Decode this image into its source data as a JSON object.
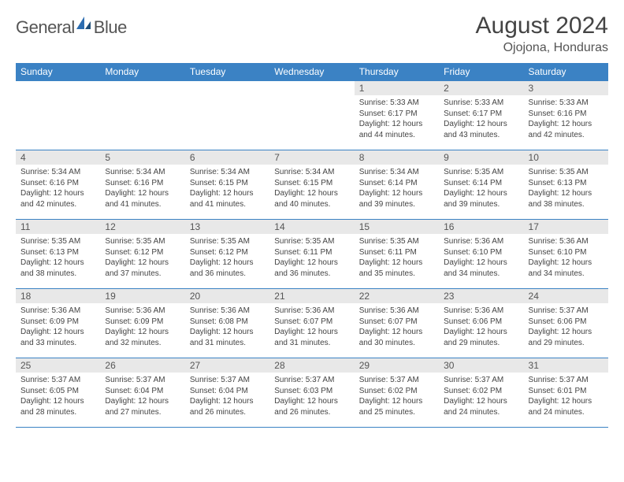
{
  "logo": {
    "word1": "General",
    "word2": "Blue"
  },
  "title": "August 2024",
  "location": "Ojojona, Honduras",
  "colors": {
    "header_bg": "#3b82c4",
    "header_text": "#ffffff",
    "daynum_bg": "#e8e8e8",
    "text": "#444444",
    "rule": "#3b82c4",
    "logo_blue": "#2b6cb0"
  },
  "typography": {
    "title_fontsize": 30,
    "location_fontsize": 16,
    "dayheader_fontsize": 12,
    "body_fontsize": 10
  },
  "day_headers": [
    "Sunday",
    "Monday",
    "Tuesday",
    "Wednesday",
    "Thursday",
    "Friday",
    "Saturday"
  ],
  "weeks": [
    [
      {
        "empty": true
      },
      {
        "empty": true
      },
      {
        "empty": true
      },
      {
        "empty": true
      },
      {
        "day": "1",
        "sunrise": "Sunrise: 5:33 AM",
        "sunset": "Sunset: 6:17 PM",
        "daylight": "Daylight: 12 hours and 44 minutes."
      },
      {
        "day": "2",
        "sunrise": "Sunrise: 5:33 AM",
        "sunset": "Sunset: 6:17 PM",
        "daylight": "Daylight: 12 hours and 43 minutes."
      },
      {
        "day": "3",
        "sunrise": "Sunrise: 5:33 AM",
        "sunset": "Sunset: 6:16 PM",
        "daylight": "Daylight: 12 hours and 42 minutes."
      }
    ],
    [
      {
        "day": "4",
        "sunrise": "Sunrise: 5:34 AM",
        "sunset": "Sunset: 6:16 PM",
        "daylight": "Daylight: 12 hours and 42 minutes."
      },
      {
        "day": "5",
        "sunrise": "Sunrise: 5:34 AM",
        "sunset": "Sunset: 6:16 PM",
        "daylight": "Daylight: 12 hours and 41 minutes."
      },
      {
        "day": "6",
        "sunrise": "Sunrise: 5:34 AM",
        "sunset": "Sunset: 6:15 PM",
        "daylight": "Daylight: 12 hours and 41 minutes."
      },
      {
        "day": "7",
        "sunrise": "Sunrise: 5:34 AM",
        "sunset": "Sunset: 6:15 PM",
        "daylight": "Daylight: 12 hours and 40 minutes."
      },
      {
        "day": "8",
        "sunrise": "Sunrise: 5:34 AM",
        "sunset": "Sunset: 6:14 PM",
        "daylight": "Daylight: 12 hours and 39 minutes."
      },
      {
        "day": "9",
        "sunrise": "Sunrise: 5:35 AM",
        "sunset": "Sunset: 6:14 PM",
        "daylight": "Daylight: 12 hours and 39 minutes."
      },
      {
        "day": "10",
        "sunrise": "Sunrise: 5:35 AM",
        "sunset": "Sunset: 6:13 PM",
        "daylight": "Daylight: 12 hours and 38 minutes."
      }
    ],
    [
      {
        "day": "11",
        "sunrise": "Sunrise: 5:35 AM",
        "sunset": "Sunset: 6:13 PM",
        "daylight": "Daylight: 12 hours and 38 minutes."
      },
      {
        "day": "12",
        "sunrise": "Sunrise: 5:35 AM",
        "sunset": "Sunset: 6:12 PM",
        "daylight": "Daylight: 12 hours and 37 minutes."
      },
      {
        "day": "13",
        "sunrise": "Sunrise: 5:35 AM",
        "sunset": "Sunset: 6:12 PM",
        "daylight": "Daylight: 12 hours and 36 minutes."
      },
      {
        "day": "14",
        "sunrise": "Sunrise: 5:35 AM",
        "sunset": "Sunset: 6:11 PM",
        "daylight": "Daylight: 12 hours and 36 minutes."
      },
      {
        "day": "15",
        "sunrise": "Sunrise: 5:35 AM",
        "sunset": "Sunset: 6:11 PM",
        "daylight": "Daylight: 12 hours and 35 minutes."
      },
      {
        "day": "16",
        "sunrise": "Sunrise: 5:36 AM",
        "sunset": "Sunset: 6:10 PM",
        "daylight": "Daylight: 12 hours and 34 minutes."
      },
      {
        "day": "17",
        "sunrise": "Sunrise: 5:36 AM",
        "sunset": "Sunset: 6:10 PM",
        "daylight": "Daylight: 12 hours and 34 minutes."
      }
    ],
    [
      {
        "day": "18",
        "sunrise": "Sunrise: 5:36 AM",
        "sunset": "Sunset: 6:09 PM",
        "daylight": "Daylight: 12 hours and 33 minutes."
      },
      {
        "day": "19",
        "sunrise": "Sunrise: 5:36 AM",
        "sunset": "Sunset: 6:09 PM",
        "daylight": "Daylight: 12 hours and 32 minutes."
      },
      {
        "day": "20",
        "sunrise": "Sunrise: 5:36 AM",
        "sunset": "Sunset: 6:08 PM",
        "daylight": "Daylight: 12 hours and 31 minutes."
      },
      {
        "day": "21",
        "sunrise": "Sunrise: 5:36 AM",
        "sunset": "Sunset: 6:07 PM",
        "daylight": "Daylight: 12 hours and 31 minutes."
      },
      {
        "day": "22",
        "sunrise": "Sunrise: 5:36 AM",
        "sunset": "Sunset: 6:07 PM",
        "daylight": "Daylight: 12 hours and 30 minutes."
      },
      {
        "day": "23",
        "sunrise": "Sunrise: 5:36 AM",
        "sunset": "Sunset: 6:06 PM",
        "daylight": "Daylight: 12 hours and 29 minutes."
      },
      {
        "day": "24",
        "sunrise": "Sunrise: 5:37 AM",
        "sunset": "Sunset: 6:06 PM",
        "daylight": "Daylight: 12 hours and 29 minutes."
      }
    ],
    [
      {
        "day": "25",
        "sunrise": "Sunrise: 5:37 AM",
        "sunset": "Sunset: 6:05 PM",
        "daylight": "Daylight: 12 hours and 28 minutes."
      },
      {
        "day": "26",
        "sunrise": "Sunrise: 5:37 AM",
        "sunset": "Sunset: 6:04 PM",
        "daylight": "Daylight: 12 hours and 27 minutes."
      },
      {
        "day": "27",
        "sunrise": "Sunrise: 5:37 AM",
        "sunset": "Sunset: 6:04 PM",
        "daylight": "Daylight: 12 hours and 26 minutes."
      },
      {
        "day": "28",
        "sunrise": "Sunrise: 5:37 AM",
        "sunset": "Sunset: 6:03 PM",
        "daylight": "Daylight: 12 hours and 26 minutes."
      },
      {
        "day": "29",
        "sunrise": "Sunrise: 5:37 AM",
        "sunset": "Sunset: 6:02 PM",
        "daylight": "Daylight: 12 hours and 25 minutes."
      },
      {
        "day": "30",
        "sunrise": "Sunrise: 5:37 AM",
        "sunset": "Sunset: 6:02 PM",
        "daylight": "Daylight: 12 hours and 24 minutes."
      },
      {
        "day": "31",
        "sunrise": "Sunrise: 5:37 AM",
        "sunset": "Sunset: 6:01 PM",
        "daylight": "Daylight: 12 hours and 24 minutes."
      }
    ]
  ]
}
